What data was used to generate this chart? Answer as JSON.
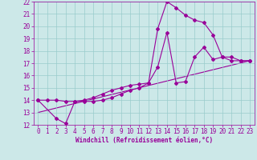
{
  "background_color": "#cce8e8",
  "grid_color": "#99cccc",
  "line_color": "#990099",
  "marker": "D",
  "marker_size": 2,
  "xlabel": "Windchill (Refroidissement éolien,°C)",
  "xlabel_fontsize": 5.5,
  "tick_fontsize": 5.5,
  "xlim": [
    -0.5,
    23.5
  ],
  "ylim": [
    12,
    22
  ],
  "xticks": [
    0,
    1,
    2,
    3,
    4,
    5,
    6,
    7,
    8,
    9,
    10,
    11,
    12,
    13,
    14,
    15,
    16,
    17,
    18,
    19,
    20,
    21,
    22,
    23
  ],
  "yticks": [
    12,
    13,
    14,
    15,
    16,
    17,
    18,
    19,
    20,
    21,
    22
  ],
  "line1_x": [
    0,
    1,
    2,
    3,
    4,
    5,
    6,
    7,
    8,
    9,
    10,
    11,
    12,
    13,
    14,
    15,
    16,
    17,
    18,
    19,
    20,
    21,
    22,
    23
  ],
  "line1_y": [
    14.0,
    14.0,
    14.0,
    13.9,
    13.9,
    14.0,
    14.2,
    14.5,
    14.8,
    15.0,
    15.2,
    15.3,
    15.4,
    16.7,
    19.5,
    15.4,
    15.5,
    17.5,
    18.3,
    17.3,
    17.5,
    17.2,
    17.2,
    17.2
  ],
  "line2_x": [
    0,
    2,
    3,
    4,
    5,
    6,
    7,
    8,
    9,
    10,
    11,
    12,
    13,
    14,
    15,
    16,
    17,
    18,
    19,
    20,
    21,
    22,
    23
  ],
  "line2_y": [
    14.0,
    12.5,
    12.1,
    13.9,
    13.9,
    13.9,
    14.0,
    14.2,
    14.5,
    14.8,
    15.0,
    15.4,
    19.8,
    22.0,
    21.5,
    20.9,
    20.5,
    20.3,
    19.3,
    17.5,
    17.5,
    17.2,
    17.2
  ],
  "line3_x": [
    0,
    23
  ],
  "line3_y": [
    13.0,
    17.2
  ]
}
